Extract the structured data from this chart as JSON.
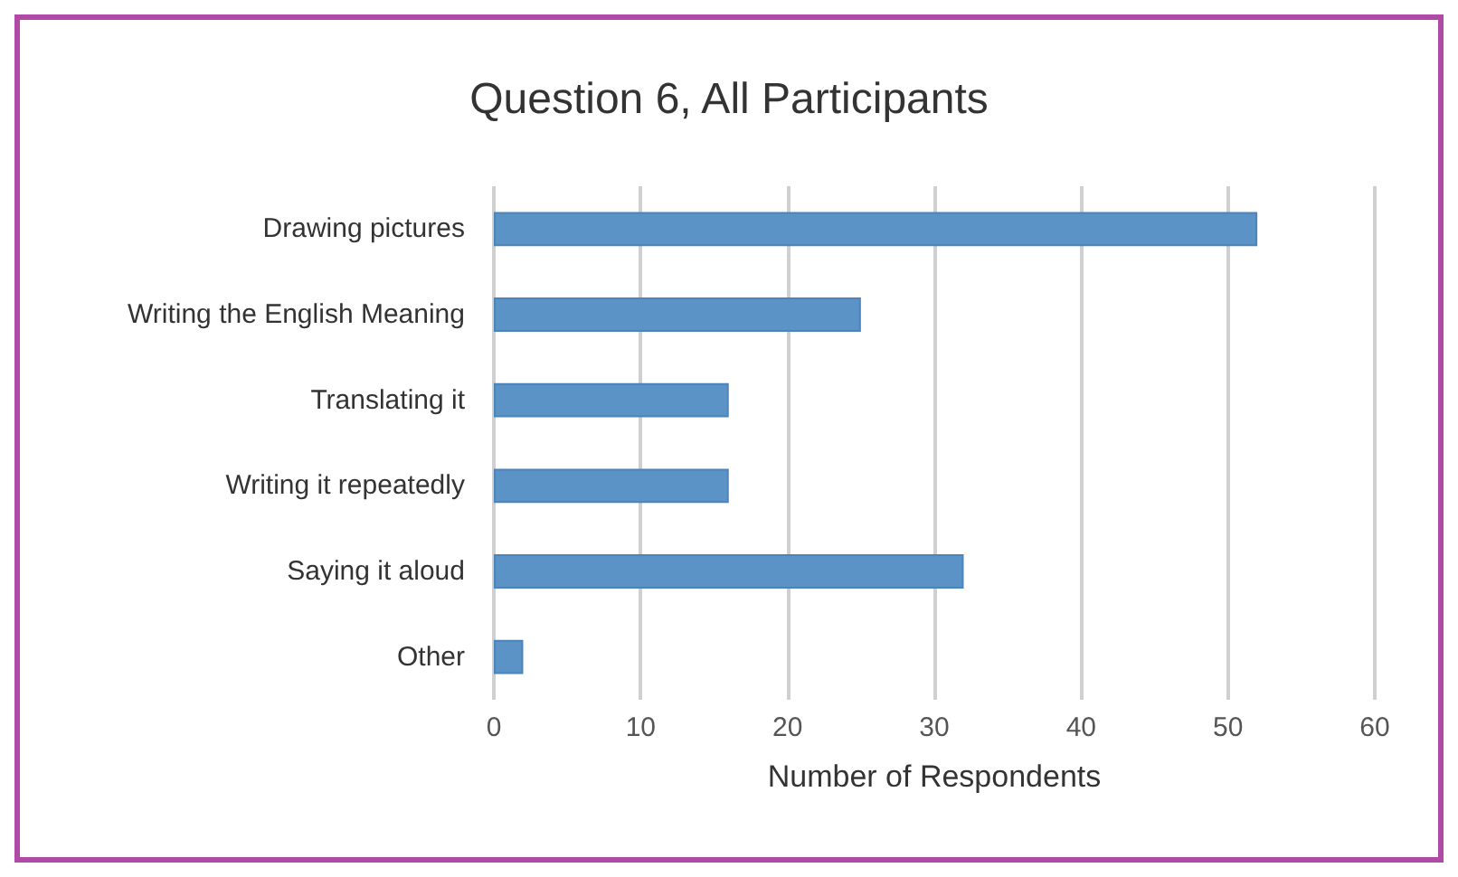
{
  "chart_data": {
    "type": "bar",
    "orientation": "horizontal",
    "title": "Question 6, All Participants",
    "xlabel": "Number of Respondents",
    "categories": [
      "Drawing pictures",
      "Writing the English Meaning",
      "Translating it",
      "Writing it repeatedly",
      "Saying it aloud",
      "Other"
    ],
    "values": [
      52,
      25,
      16,
      16,
      32,
      2
    ],
    "color": "#5b93c7",
    "xlim": [
      0,
      60
    ],
    "xticks": [
      0,
      10,
      20,
      30,
      40,
      50,
      60
    ],
    "grid": "x"
  }
}
